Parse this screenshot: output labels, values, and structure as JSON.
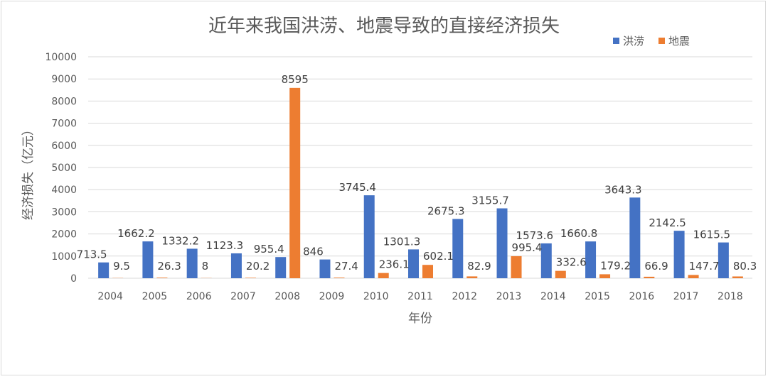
{
  "colors": {
    "flood": "#4472c4",
    "quake": "#ed7d31",
    "grid": "#d9d9d9"
  },
  "chart_data": {
    "type": "bar",
    "title": "近年来我国洪涝、地震导致的直接经济损失",
    "xlabel": "年份",
    "ylabel": "经济损失（亿元）",
    "ylim": [
      0,
      10000
    ],
    "yticks": [
      0,
      1000,
      2000,
      3000,
      4000,
      5000,
      6000,
      7000,
      8000,
      9000,
      10000
    ],
    "grid": true,
    "legend_position": "top-right",
    "categories": [
      "2004",
      "2005",
      "2006",
      "2007",
      "2008",
      "2009",
      "2010",
      "2011",
      "2012",
      "2013",
      "2014",
      "2015",
      "2016",
      "2017",
      "2018"
    ],
    "series": [
      {
        "name": "洪涝",
        "color": "#4472c4",
        "values": [
          713.5,
          1662.2,
          1332.2,
          1123.3,
          955.4,
          846,
          3745.4,
          1301.3,
          2675.3,
          3155.7,
          1573.6,
          1660.8,
          3643.3,
          2142.5,
          1615.5
        ],
        "labels": [
          "713.5",
          "1662.2",
          "1332.2",
          "1123.3",
          "955.4",
          "846",
          "3745.4",
          "1301.3",
          "2675.3",
          "3155.7",
          "1573.6",
          "1660.8",
          "3643.3",
          "2142.5",
          "1615.5"
        ]
      },
      {
        "name": "地震",
        "color": "#ed7d31",
        "values": [
          9.5,
          26.3,
          8,
          20.2,
          8595,
          27.4,
          236.1,
          602.1,
          82.9,
          995.4,
          332.6,
          179.2,
          66.9,
          147.7,
          80.3
        ],
        "labels": [
          "9.5",
          "26.3",
          "8",
          "20.2",
          "8595",
          "27.4",
          "236.1",
          "602.1",
          "82.9",
          "995.4",
          "332.6",
          "179.2",
          "66.9",
          "147.7",
          "80.3"
        ]
      }
    ]
  }
}
